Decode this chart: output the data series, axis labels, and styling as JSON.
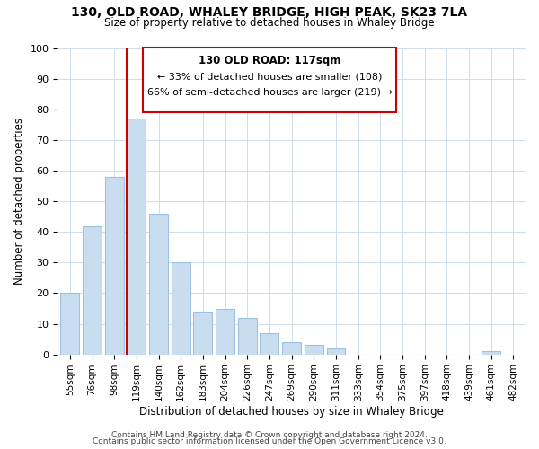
{
  "title": "130, OLD ROAD, WHALEY BRIDGE, HIGH PEAK, SK23 7LA",
  "subtitle": "Size of property relative to detached houses in Whaley Bridge",
  "xlabel": "Distribution of detached houses by size in Whaley Bridge",
  "ylabel": "Number of detached properties",
  "bar_labels": [
    "55sqm",
    "76sqm",
    "98sqm",
    "119sqm",
    "140sqm",
    "162sqm",
    "183sqm",
    "204sqm",
    "226sqm",
    "247sqm",
    "269sqm",
    "290sqm",
    "311sqm",
    "333sqm",
    "354sqm",
    "375sqm",
    "397sqm",
    "418sqm",
    "439sqm",
    "461sqm",
    "482sqm"
  ],
  "bar_heights": [
    20,
    42,
    58,
    77,
    46,
    30,
    14,
    15,
    12,
    7,
    4,
    3,
    2,
    0,
    0,
    0,
    0,
    0,
    0,
    1,
    0
  ],
  "bar_color": "#c9ddf0",
  "bar_edge_color": "#a0c0e0",
  "vline_x_index": 3,
  "vline_color": "#cc0000",
  "annotation_title": "130 OLD ROAD: 117sqm",
  "annotation_line1": "← 33% of detached houses are smaller (108)",
  "annotation_line2": "66% of semi-detached houses are larger (219) →",
  "annotation_box_color": "#ffffff",
  "annotation_box_edge": "#cc0000",
  "ylim": [
    0,
    100
  ],
  "yticks": [
    0,
    10,
    20,
    30,
    40,
    50,
    60,
    70,
    80,
    90,
    100
  ],
  "footer1": "Contains HM Land Registry data © Crown copyright and database right 2024.",
  "footer2": "Contains public sector information licensed under the Open Government Licence v3.0.",
  "background_color": "#ffffff",
  "grid_color": "#d0dce8"
}
